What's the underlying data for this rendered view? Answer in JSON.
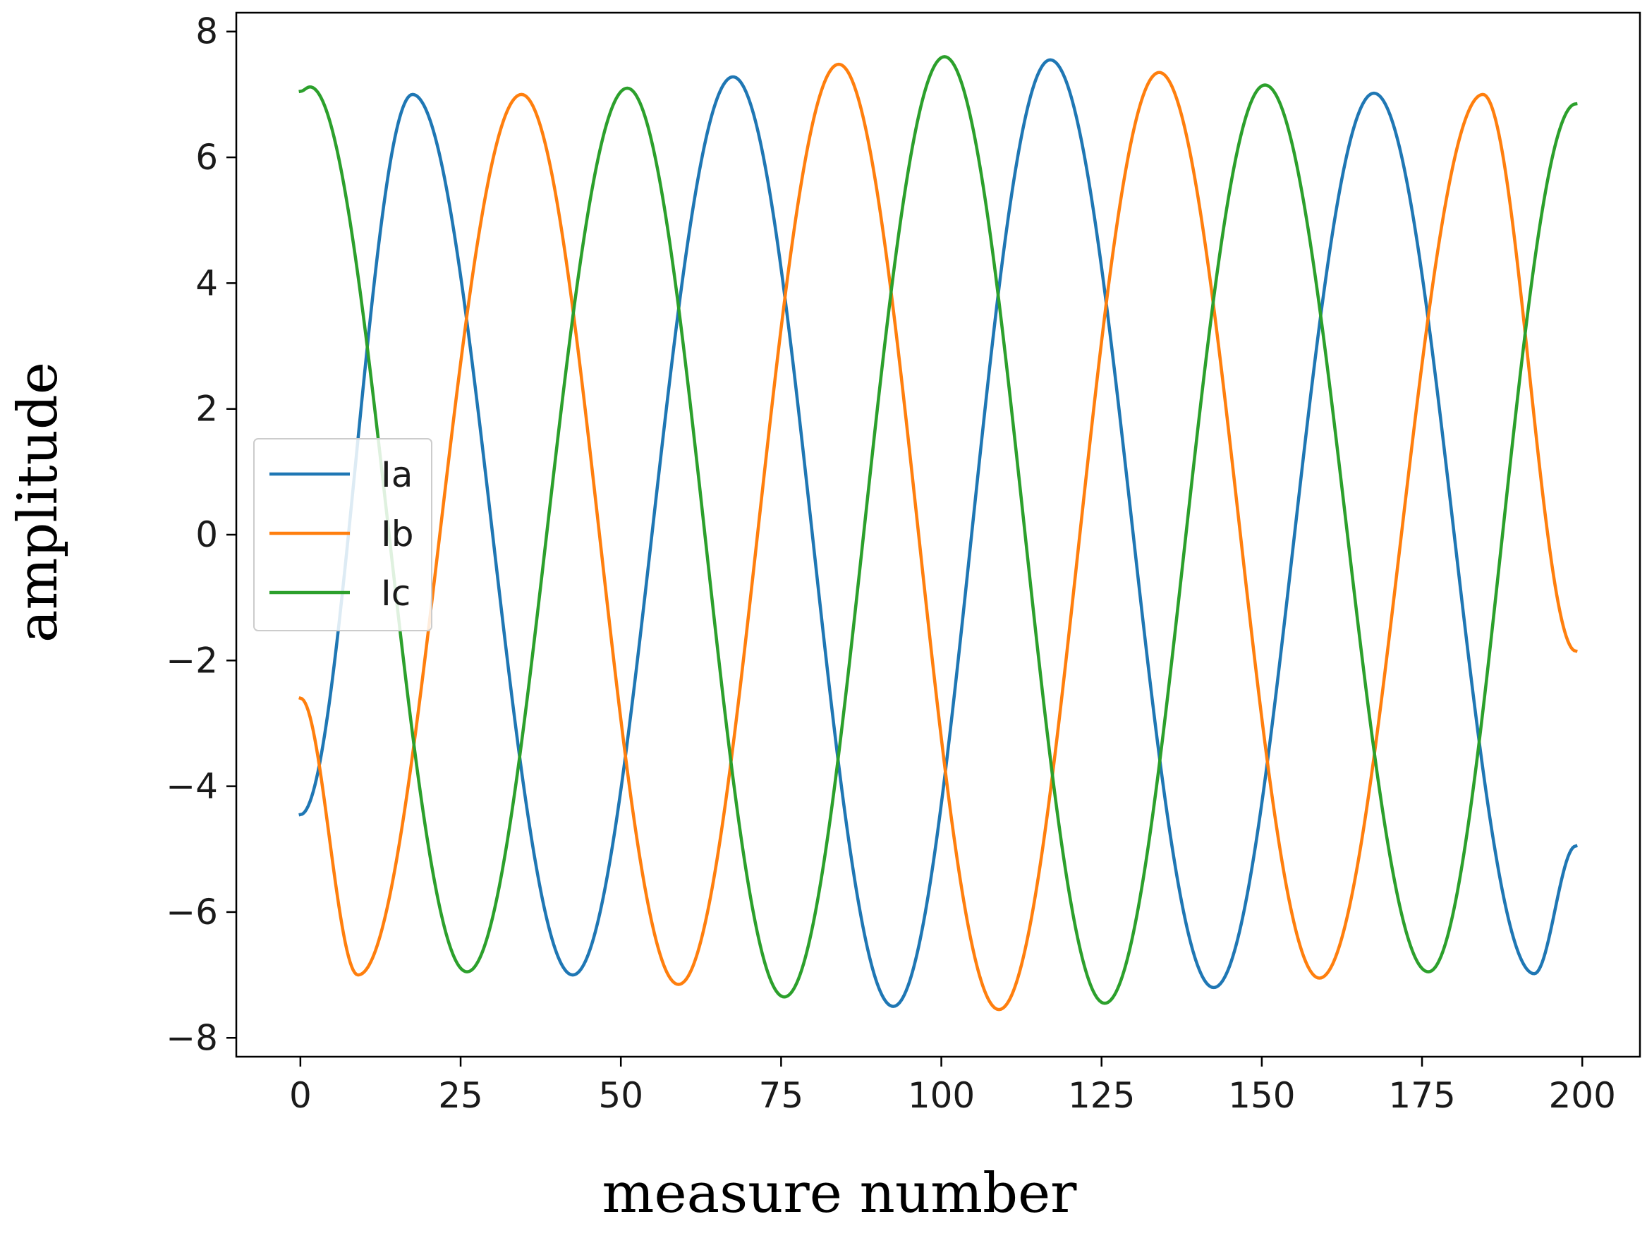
{
  "chart_data": {
    "type": "line",
    "title": "",
    "xlabel": "measure number",
    "ylabel": "amplitude",
    "xlim": [
      -10,
      209
    ],
    "ylim": [
      -8.3,
      8.3
    ],
    "xticks": [
      0,
      25,
      50,
      75,
      100,
      125,
      150,
      175,
      200
    ],
    "yticks": [
      8,
      6,
      4,
      2,
      0,
      -2,
      -4,
      -6,
      -8
    ],
    "ytick_labels": [
      "8",
      "6",
      "4",
      "2",
      "0",
      "−2",
      "−4",
      "−6",
      "−8"
    ],
    "grid": false,
    "legend_position": "center-left",
    "x_start": 0,
    "x_end": 199,
    "series": [
      {
        "name": "Ia",
        "color": "#1f77b4",
        "peaks": [
          {
            "x": 0,
            "y": -4.45
          },
          {
            "x": 17.5,
            "y": 7.0
          },
          {
            "x": 42.5,
            "y": -7.0
          },
          {
            "x": 67.5,
            "y": 7.28
          },
          {
            "x": 92.5,
            "y": -7.5
          },
          {
            "x": 117.0,
            "y": 7.55
          },
          {
            "x": 142.5,
            "y": -7.2
          },
          {
            "x": 167.5,
            "y": 7.02
          },
          {
            "x": 192.5,
            "y": -6.98
          },
          {
            "x": 199,
            "y": -4.95
          }
        ]
      },
      {
        "name": "Ib",
        "color": "#ff7f0e",
        "peaks": [
          {
            "x": 0,
            "y": -2.6
          },
          {
            "x": 9.0,
            "y": -7.0
          },
          {
            "x": 34.5,
            "y": 7.0
          },
          {
            "x": 59.0,
            "y": -7.15
          },
          {
            "x": 84.0,
            "y": 7.48
          },
          {
            "x": 109.0,
            "y": -7.55
          },
          {
            "x": 134.0,
            "y": 7.35
          },
          {
            "x": 159.0,
            "y": -7.05
          },
          {
            "x": 184.5,
            "y": 7.0
          },
          {
            "x": 199,
            "y": -1.85
          }
        ]
      },
      {
        "name": "Ic",
        "color": "#2ca02c",
        "peaks": [
          {
            "x": 0,
            "y": 7.05
          },
          {
            "x": 1.5,
            "y": 7.12
          },
          {
            "x": 26.0,
            "y": -6.95
          },
          {
            "x": 51.0,
            "y": 7.1
          },
          {
            "x": 75.5,
            "y": -7.35
          },
          {
            "x": 100.5,
            "y": 7.6
          },
          {
            "x": 125.5,
            "y": -7.45
          },
          {
            "x": 150.5,
            "y": 7.15
          },
          {
            "x": 176.0,
            "y": -6.95
          },
          {
            "x": 199,
            "y": 6.85
          }
        ]
      }
    ]
  }
}
